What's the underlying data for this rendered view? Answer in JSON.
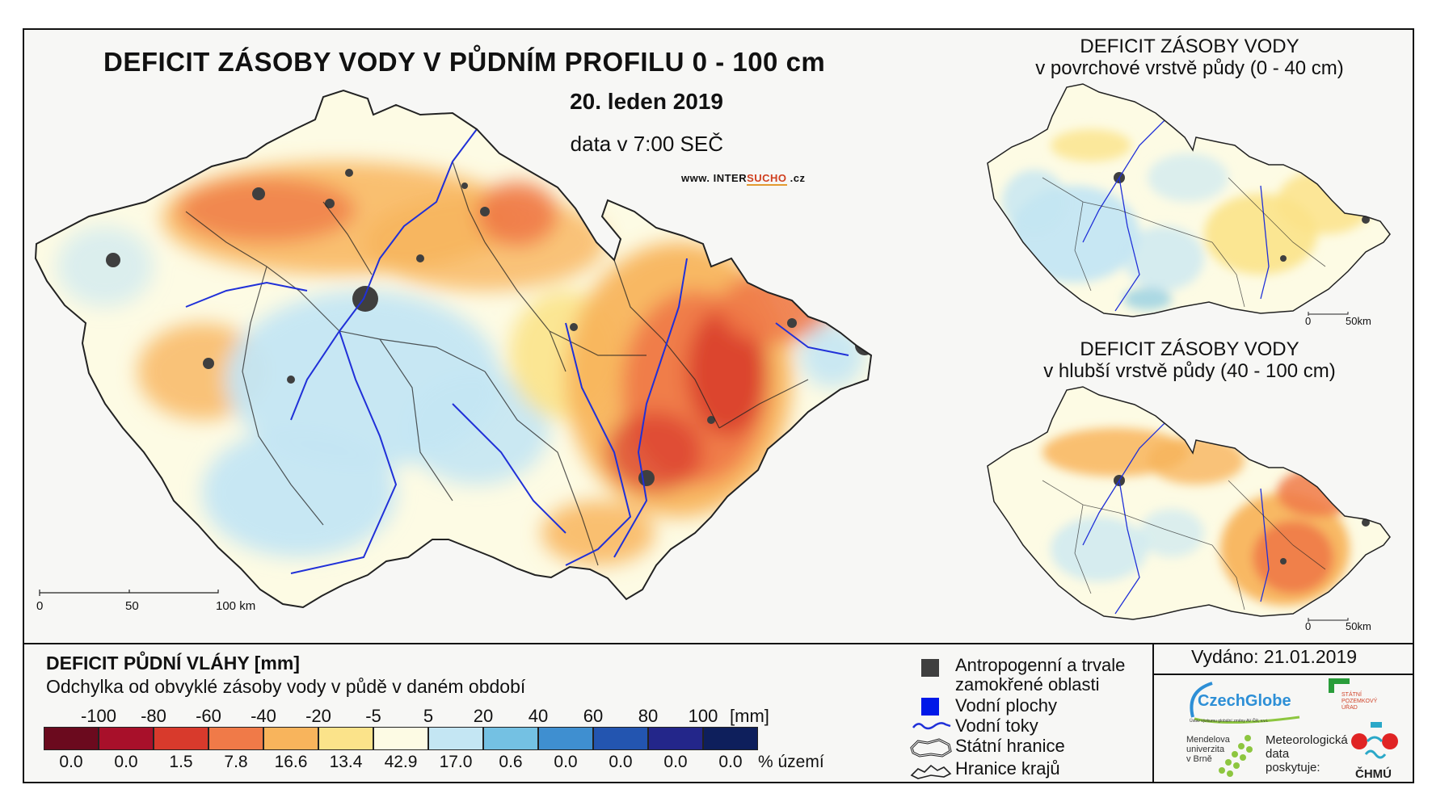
{
  "main_map": {
    "title": "DEFICIT ZÁSOBY VODY V PŮDNÍM PROFILU 0 - 100 cm",
    "date": "20. leden 2019",
    "data_time": "data v 7:00 SEČ",
    "website_prefix": "www. INTER",
    "website_highlight": "SUCHO",
    "website_suffix": " .cz",
    "scale_labels": [
      "0",
      "50",
      "100 km"
    ]
  },
  "inset_top": {
    "title_line1": "DEFICIT ZÁSOBY VODY",
    "title_line2": "v povrchové vrstvě půdy (0 - 40 cm)",
    "scale_labels": [
      "0",
      "50km"
    ]
  },
  "inset_bottom": {
    "title_line1": "DEFICIT ZÁSOBY VODY",
    "title_line2": "v hlubší vrstvě půdy (40 - 100 cm)",
    "scale_labels": [
      "0",
      "50km"
    ]
  },
  "legend": {
    "title": "DEFICIT PŮDNÍ VLÁHY [mm]",
    "subtitle": "Odchylka od obvyklé zásoby vody v půdě v daném období",
    "unit": "[mm]",
    "percent_unit": "% území",
    "breaks": [
      "-100",
      "-80",
      "-60",
      "-40",
      "-20",
      "-5",
      "5",
      "20",
      "40",
      "60",
      "80",
      "100"
    ],
    "colors": [
      "#6b0a1e",
      "#a8102a",
      "#d83a2c",
      "#f07a48",
      "#f8b45c",
      "#fbe38a",
      "#fdfbe4",
      "#c4e6f3",
      "#74c1e3",
      "#3f8fd0",
      "#2355b0",
      "#23268a",
      "#0e1f5c"
    ],
    "percentages": [
      "0.0",
      "0.0",
      "1.5",
      "7.8",
      "16.6",
      "13.4",
      "42.9",
      "17.0",
      "0.6",
      "0.0",
      "0.0",
      "0.0",
      "0.0"
    ]
  },
  "symbols": [
    {
      "icon": "urban-square-icon",
      "label_line1": "Antropogenní a trvale",
      "label_line2": "zamokřené oblasti"
    },
    {
      "icon": "water-square-icon",
      "label_line1": "Vodní plochy",
      "label_line2": ""
    },
    {
      "icon": "river-line-icon",
      "label_line1": "Vodní toky",
      "label_line2": ""
    },
    {
      "icon": "state-border-icon",
      "label_line1": "Státní hranice",
      "label_line2": ""
    },
    {
      "icon": "region-border-icon",
      "label_line1": "Hranice krajů",
      "label_line2": ""
    }
  ],
  "colors": {
    "urban": "#3f3f3f",
    "water": "#0018e8",
    "river": "#2030d8"
  },
  "issued": "Vydáno: 21.01.2019",
  "logos": {
    "czechglobe": "CzechGlobe",
    "czechglobe_sub": "Ústav výzkumu globální změny AV ČR, v.v.i.",
    "spu_line1": "STÁTNÍ",
    "spu_line2": "POZEMKOVÝ",
    "spu_line3": "ÚŘAD",
    "mendel_line1": "Mendelova",
    "mendel_line2": "univerzita",
    "mendel_line3": "v Brně",
    "meteo_line1": "Meteorologická",
    "meteo_line2": "data",
    "meteo_line3": "poskytuje:",
    "chmu": "ČHMÚ"
  }
}
